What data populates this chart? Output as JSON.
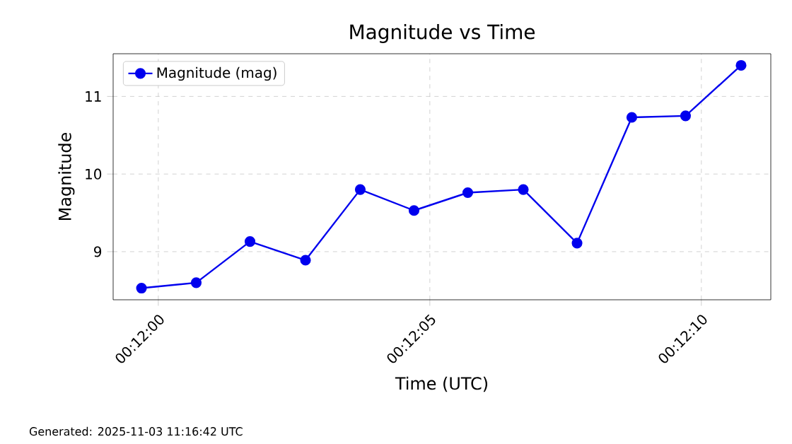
{
  "chart_data": {
    "type": "line",
    "title": "Magnitude vs Time",
    "xlabel": "Time (UTC)",
    "ylabel": "Magnitude",
    "x": [
      0.199914,
      0.200194,
      0.200469,
      0.200753,
      0.201033,
      0.201308,
      0.201583,
      0.201867,
      0.202142,
      0.202422,
      0.202697,
      0.202981
    ],
    "series": [
      {
        "name": "Magnitude (mag)",
        "color": "#0000ee",
        "values": [
          8.53,
          8.6,
          9.13,
          8.89,
          9.8,
          9.53,
          9.76,
          9.8,
          9.11,
          10.73,
          10.75,
          11.4
        ]
      }
    ],
    "xlim": [
      0.199769,
      0.203133
    ],
    "ylim": [
      8.38,
      11.55
    ],
    "xticks": [
      {
        "value": 0.2,
        "label": "00:12:00"
      },
      {
        "value": 0.2013889,
        "label": "00:12:05"
      },
      {
        "value": 0.2027778,
        "label": "00:12:10"
      }
    ],
    "yticks": [
      9,
      10,
      11
    ],
    "grid": true,
    "legend": "top left",
    "marker": "circle",
    "line_style": "solid",
    "annotations": [
      "Generated: 2025-11-03 11:16:42 UTC"
    ]
  }
}
